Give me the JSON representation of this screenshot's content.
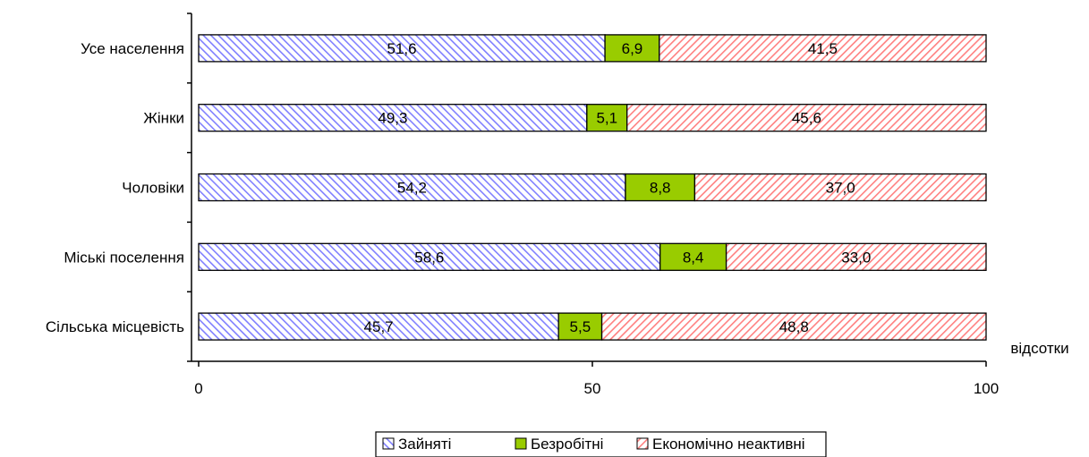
{
  "chart_data": {
    "type": "bar",
    "orientation": "horizontal",
    "stacked": true,
    "categories": [
      "Усе населення",
      "Жінки",
      "Чоловіки",
      "Міські поселення",
      "Сільська місцевість"
    ],
    "series": [
      {
        "name": "Зайняті",
        "values": [
          51.6,
          49.3,
          54.2,
          58.6,
          45.7
        ],
        "labels": [
          "51,6",
          "49,3",
          "54,2",
          "58,6",
          "45,7"
        ],
        "color": "#9999ff",
        "pattern": "diagonal-hatch"
      },
      {
        "name": "Безробітні",
        "values": [
          6.9,
          5.1,
          8.8,
          8.4,
          5.5
        ],
        "labels": [
          "6,9",
          "5,1",
          "8,8",
          "8,4",
          "5,5"
        ],
        "color": "#99cc00",
        "pattern": "solid"
      },
      {
        "name": "Економічно неактивні",
        "values": [
          41.5,
          45.6,
          37.0,
          33.0,
          48.8
        ],
        "labels": [
          "41,5",
          "45,6",
          "37,0",
          "33,0",
          "48,8"
        ],
        "color": "#ff9999",
        "pattern": "diagonal-hatch"
      }
    ],
    "xlabel": "відсотки",
    "xlim": [
      0,
      100
    ],
    "xticks": [
      "0",
      "50",
      "100"
    ],
    "legend_position": "bottom",
    "grid": false
  }
}
